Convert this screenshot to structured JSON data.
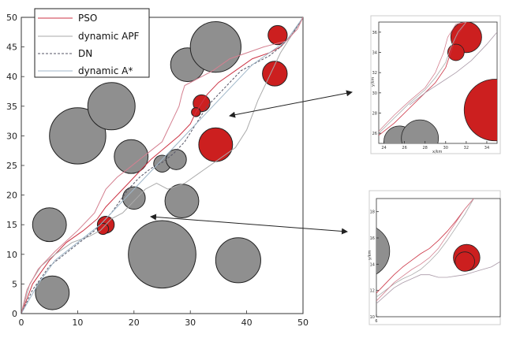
{
  "chart_data": [
    {
      "type": "scatter",
      "title": "",
      "xlabel": "",
      "ylabel": "",
      "xlim": [
        0,
        50
      ],
      "ylim": [
        0,
        50
      ],
      "xticks": [
        "0",
        "10",
        "20",
        "30",
        "40",
        "50"
      ],
      "yticks": [
        "0",
        "5",
        "10",
        "15",
        "20",
        "25",
        "30",
        "35",
        "40",
        "45",
        "50"
      ],
      "legend": {
        "placement": "top-left",
        "entries": [
          "PSO",
          "dynamic APF",
          "DN",
          "dynamic A*"
        ]
      },
      "colors": {
        "PSO": "#cc3344",
        "dynamic APF": "#aaaaaa",
        "DN": "#555566",
        "dynamic A*": "#9fb6c8",
        "static_obstacle": "#8f8f8f",
        "dynamic_obstacle": "#cc1f1f"
      },
      "obstacles": [
        {
          "kind": "static",
          "x": 5.5,
          "y": 3.5,
          "r": 3
        },
        {
          "kind": "static",
          "x": 5,
          "y": 15,
          "r": 3
        },
        {
          "kind": "static",
          "x": 10,
          "y": 30,
          "r": 5
        },
        {
          "kind": "static",
          "x": 16,
          "y": 35,
          "r": 4.2
        },
        {
          "kind": "static",
          "x": 19.5,
          "y": 26.5,
          "r": 3
        },
        {
          "kind": "static",
          "x": 20,
          "y": 19.5,
          "r": 2
        },
        {
          "kind": "static",
          "x": 25,
          "y": 10,
          "r": 6
        },
        {
          "kind": "static",
          "x": 25,
          "y": 25.3,
          "r": 1.5
        },
        {
          "kind": "static",
          "x": 27.5,
          "y": 26,
          "r": 1.8
        },
        {
          "kind": "static",
          "x": 28.5,
          "y": 19,
          "r": 3
        },
        {
          "kind": "static",
          "x": 29.5,
          "y": 42,
          "r": 3
        },
        {
          "kind": "static",
          "x": 34.5,
          "y": 45,
          "r": 4.5
        },
        {
          "kind": "static",
          "x": 38.5,
          "y": 9,
          "r": 4
        },
        {
          "kind": "dynamic",
          "x": 15,
          "y": 15,
          "r": 1.5
        },
        {
          "kind": "dynamic",
          "x": 14.5,
          "y": 14.3,
          "r": 1
        },
        {
          "kind": "dynamic",
          "x": 32,
          "y": 35.5,
          "r": 1.5
        },
        {
          "kind": "dynamic",
          "x": 31,
          "y": 34,
          "r": 0.8
        },
        {
          "kind": "dynamic",
          "x": 34.5,
          "y": 28.5,
          "r": 3
        },
        {
          "kind": "dynamic",
          "x": 45,
          "y": 40.5,
          "r": 2.2
        },
        {
          "kind": "dynamic",
          "x": 45.5,
          "y": 47,
          "r": 1.7
        }
      ],
      "series": [
        {
          "name": "PSO",
          "points": [
            [
              0,
              0
            ],
            [
              2,
              5
            ],
            [
              5,
              9
            ],
            [
              8,
              12
            ],
            [
              11,
              14
            ],
            [
              13.5,
              16
            ],
            [
              15,
              18
            ],
            [
              17,
              20
            ],
            [
              19,
              22
            ],
            [
              21,
              24
            ],
            [
              23,
              26
            ],
            [
              25.5,
              28
            ],
            [
              28,
              30
            ],
            [
              30,
              32
            ],
            [
              31,
              34
            ],
            [
              33,
              37
            ],
            [
              35,
              39
            ],
            [
              38,
              41
            ],
            [
              41,
              43
            ],
            [
              44,
              44
            ],
            [
              46,
              45
            ],
            [
              48,
              47
            ],
            [
              50,
              50
            ]
          ]
        },
        {
          "name": "dynamic APF",
          "points": [
            [
              0,
              0
            ],
            [
              1.5,
              5
            ],
            [
              3.5,
              8
            ],
            [
              6,
              10
            ],
            [
              9,
              12
            ],
            [
              12,
              13
            ],
            [
              14,
              14
            ],
            [
              16,
              16
            ],
            [
              18,
              17
            ],
            [
              20,
              19
            ],
            [
              22,
              21
            ],
            [
              24,
              22
            ],
            [
              26,
              21
            ],
            [
              29,
              22
            ],
            [
              32,
              24
            ],
            [
              35,
              26
            ],
            [
              38,
              28
            ],
            [
              40,
              31
            ],
            [
              42,
              36
            ],
            [
              44,
              40
            ],
            [
              46,
              44
            ],
            [
              48,
              47
            ],
            [
              50,
              50
            ]
          ]
        },
        {
          "name": "DN",
          "points": [
            [
              0,
              0
            ],
            [
              2,
              4
            ],
            [
              5,
              8
            ],
            [
              9,
              11
            ],
            [
              13,
              14
            ],
            [
              16,
              17
            ],
            [
              19,
              21
            ],
            [
              21,
              23
            ],
            [
              23,
              24.5
            ],
            [
              25,
              25.5
            ],
            [
              27,
              27
            ],
            [
              29,
              29
            ],
            [
              31,
              32
            ],
            [
              33,
              35
            ],
            [
              35,
              37
            ],
            [
              37,
              39
            ],
            [
              39,
              41
            ],
            [
              41,
              42
            ],
            [
              44,
              43.5
            ],
            [
              46,
              45
            ],
            [
              48,
              47
            ],
            [
              50,
              50
            ]
          ]
        },
        {
          "name": "dynamic A*",
          "points": [
            [
              0,
              0
            ],
            [
              3,
              5
            ],
            [
              6,
              9
            ],
            [
              10,
              12
            ],
            [
              14,
              15
            ],
            [
              17,
              18
            ],
            [
              20,
              21
            ],
            [
              23,
              24
            ],
            [
              26,
              27
            ],
            [
              29,
              30
            ],
            [
              32,
              33
            ],
            [
              35,
              36
            ],
            [
              38,
              39
            ],
            [
              41,
              42
            ],
            [
              44,
              44
            ],
            [
              47,
              46
            ],
            [
              50,
              50
            ]
          ]
        },
        {
          "name": "",
          "points": [
            [
              0,
              0
            ],
            [
              1,
              4
            ],
            [
              3,
              7.5
            ],
            [
              6,
              10.5
            ],
            [
              10,
              14
            ],
            [
              13,
              17
            ],
            [
              15,
              21
            ],
            [
              17,
              23
            ],
            [
              19,
              24.5
            ],
            [
              21,
              26
            ],
            [
              23,
              27.5
            ],
            [
              25,
              29
            ],
            [
              26,
              31
            ],
            [
              27,
              33
            ],
            [
              28,
              35
            ],
            [
              28.5,
              37
            ],
            [
              29,
              38.5
            ],
            [
              31,
              39.5
            ],
            [
              34,
              41
            ],
            [
              37,
              43
            ],
            [
              40,
              44
            ],
            [
              43,
              45
            ],
            [
              45,
              45.5
            ],
            [
              47,
              46
            ],
            [
              49,
              48
            ],
            [
              50,
              50
            ]
          ]
        }
      ]
    },
    {
      "type": "scatter",
      "title": "",
      "xlabel": "x/km",
      "ylabel": "y/km",
      "xlim": [
        23.5,
        35
      ],
      "ylim": [
        25,
        37
      ],
      "xticks": [
        "24",
        "26",
        "28",
        "30",
        "32",
        "34"
      ],
      "yticks": [
        "26",
        "28",
        "30",
        "32",
        "34",
        "36"
      ],
      "obstacles": [
        {
          "kind": "static",
          "x": 25.5,
          "y": 25.2,
          "r": 1.5
        },
        {
          "kind": "static",
          "x": 27.5,
          "y": 25.5,
          "r": 1.8
        },
        {
          "kind": "dynamic",
          "x": 32,
          "y": 35.5,
          "r": 1.5
        },
        {
          "kind": "dynamic",
          "x": 31,
          "y": 34,
          "r": 0.8
        },
        {
          "kind": "dynamic",
          "x": 34.8,
          "y": 28.3,
          "r": 3
        }
      ],
      "series": [
        {
          "name": "PSO",
          "points": [
            [
              23.5,
              25.8
            ],
            [
              25,
              27
            ],
            [
              26.5,
              28.5
            ],
            [
              28,
              30
            ],
            [
              29,
              31
            ],
            [
              30,
              32.5
            ],
            [
              30.5,
              34
            ],
            [
              31,
              35.5
            ],
            [
              32,
              37
            ]
          ]
        },
        {
          "name": "dynamic APF",
          "points": [
            [
              23.5,
              26
            ],
            [
              25,
              27.5
            ],
            [
              26.5,
              29
            ],
            [
              28,
              30.3
            ],
            [
              29,
              31.5
            ],
            [
              30,
              33
            ],
            [
              30.5,
              34.5
            ],
            [
              31.2,
              36
            ],
            [
              32,
              37
            ]
          ]
        },
        {
          "name": "",
          "points": [
            [
              23.5,
              26.2
            ],
            [
              25,
              27.8
            ],
            [
              26.5,
              29.2
            ],
            [
              28,
              30.5
            ],
            [
              29,
              32
            ],
            [
              29.8,
              34
            ],
            [
              30.2,
              35.5
            ],
            [
              31,
              36.8
            ],
            [
              32,
              37
            ]
          ]
        },
        {
          "name": "",
          "points": [
            [
              26.5,
              28.8
            ],
            [
              28,
              30
            ],
            [
              29.5,
              31
            ],
            [
              31,
              32
            ],
            [
              32.5,
              33.2
            ],
            [
              34,
              34.8
            ],
            [
              35,
              36
            ]
          ]
        }
      ]
    },
    {
      "type": "scatter",
      "title": "",
      "xlabel": "",
      "ylabel": "y/km",
      "xlim": [
        6,
        20
      ],
      "ylim": [
        10,
        19
      ],
      "xticks": [
        "6"
      ],
      "yticks": [
        "10",
        "12",
        "14",
        "16",
        "18"
      ],
      "obstacles": [
        {
          "kind": "static",
          "x": 4.5,
          "y": 15,
          "r": 3
        },
        {
          "kind": "dynamic",
          "x": 16.2,
          "y": 14.5,
          "r": 1.5
        },
        {
          "kind": "dynamic",
          "x": 16,
          "y": 14.2,
          "r": 1.1
        }
      ],
      "series": [
        {
          "name": "PSO",
          "points": [
            [
              6,
              11.8
            ],
            [
              7,
              12.5
            ],
            [
              8,
              13.2
            ],
            [
              9,
              13.8
            ],
            [
              10,
              14.3
            ],
            [
              11,
              14.8
            ],
            [
              12,
              15.2
            ],
            [
              13,
              15.8
            ],
            [
              14,
              16.5
            ],
            [
              15,
              17.3
            ],
            [
              16,
              18.2
            ],
            [
              17,
              19
            ]
          ]
        },
        {
          "name": "dynamic APF",
          "points": [
            [
              6,
              11.5
            ],
            [
              7,
              12
            ],
            [
              8,
              12.5
            ],
            [
              9,
              12.9
            ],
            [
              10,
              13.2
            ],
            [
              11,
              13.6
            ],
            [
              12,
              14.2
            ],
            [
              13,
              14.9
            ],
            [
              14,
              15.8
            ],
            [
              15,
              16.8
            ],
            [
              16,
              17.8
            ],
            [
              17,
              19
            ]
          ]
        },
        {
          "name": "",
          "points": [
            [
              6,
              11.2
            ],
            [
              7,
              11.9
            ],
            [
              8,
              12.6
            ],
            [
              9,
              13.1
            ],
            [
              10,
              13.6
            ],
            [
              11,
              14
            ],
            [
              12,
              14.5
            ],
            [
              13,
              15.2
            ],
            [
              14,
              16.2
            ],
            [
              15,
              17.2
            ],
            [
              16,
              18.2
            ],
            [
              17,
              19
            ]
          ]
        },
        {
          "name": "",
          "points": [
            [
              6,
              11
            ],
            [
              7,
              11.6
            ],
            [
              8,
              12.2
            ],
            [
              9,
              12.6
            ],
            [
              10,
              12.9
            ],
            [
              11,
              13.2
            ],
            [
              12,
              13.2
            ],
            [
              13,
              13
            ],
            [
              14,
              13
            ],
            [
              15,
              13.1
            ],
            [
              16,
              13.2
            ],
            [
              17,
              13.4
            ],
            [
              18,
              13.6
            ],
            [
              19,
              13.8
            ],
            [
              20,
              14.2
            ]
          ]
        }
      ]
    }
  ]
}
